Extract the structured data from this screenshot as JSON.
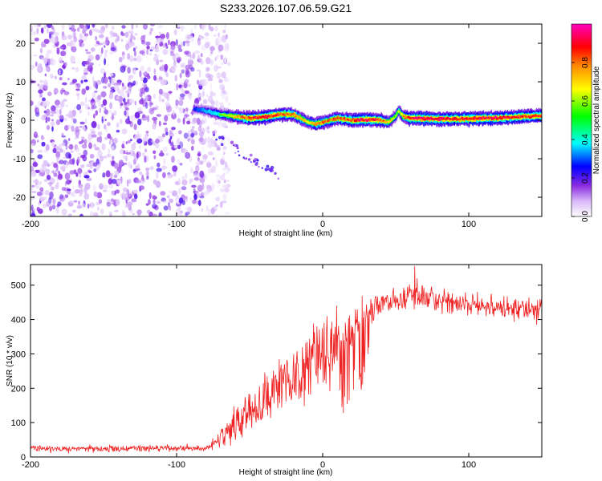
{
  "title": "S233.2026.107.06.59.G21",
  "chart_data": [
    {
      "type": "heatmap",
      "name": "spectrogram",
      "xlabel": "Height of straight line (km)",
      "ylabel": "Frequency (Hz)",
      "xlim": [
        -200,
        150
      ],
      "ylim": [
        -25,
        25
      ],
      "xticks": [
        -200,
        -100,
        0,
        100
      ],
      "xtick_labels": [
        "-200",
        "-100",
        "0",
        "100"
      ],
      "yticks": [
        -20,
        -10,
        0,
        10,
        20
      ],
      "ytick_labels": [
        "-20",
        "-10",
        "0",
        "10",
        "20"
      ],
      "colorbar": {
        "label": "Normalized spectral amplitude",
        "range": [
          0,
          1
        ],
        "ticks": [
          0,
          0.2,
          0.4,
          0.6,
          0.8
        ],
        "tick_labels": [
          "0.0",
          "0.2",
          "0.4",
          "0.6",
          "0.8"
        ],
        "colors": [
          "#ffffff",
          "#d8b8f8",
          "#8a2be2",
          "#0000ff",
          "#00ffff",
          "#00ff00",
          "#ffff00",
          "#ff8c00",
          "#ff0000",
          "#ff00c0"
        ]
      },
      "noise_region": {
        "x_from": -200,
        "x_to": -70,
        "description": "scattered low-amplitude speckle"
      },
      "signal_ridge": {
        "x": [
          -88,
          -80,
          -70,
          -60,
          -50,
          -40,
          -30,
          -20,
          -15,
          -10,
          -5,
          0,
          10,
          20,
          30,
          40,
          45,
          50,
          52,
          55,
          60,
          70,
          80,
          100,
          120,
          150
        ],
        "frequency_hz": [
          3,
          2.5,
          1.5,
          1,
          0.5,
          0.8,
          1.5,
          1.5,
          0.5,
          -0.5,
          -1,
          -0.5,
          0.5,
          0,
          0.2,
          0,
          -0.5,
          1,
          2.5,
          1,
          0.5,
          0.5,
          0.3,
          0.4,
          0.6,
          1.2
        ],
        "amplitude": [
          0.35,
          0.45,
          0.55,
          0.7,
          0.85,
          0.9,
          0.85,
          0.8,
          0.75,
          0.7,
          0.75,
          0.8,
          0.8,
          0.85,
          0.9,
          0.85,
          0.7,
          0.6,
          0.6,
          0.75,
          0.9,
          0.95,
          0.9,
          0.9,
          0.9,
          0.85
        ]
      },
      "secondary_trace": {
        "x": [
          -75,
          -65,
          -55,
          -45,
          -35,
          -28
        ],
        "frequency_hz": [
          -3,
          -6,
          -9,
          -11,
          -13,
          -15
        ],
        "amplitude": 0.2
      }
    },
    {
      "type": "line",
      "name": "snr",
      "xlabel": "Height of straight line (km)",
      "ylabel": "SNR (10 * v/v)",
      "xlim": [
        -200,
        150
      ],
      "ylim": [
        0,
        560
      ],
      "xticks": [
        -200,
        -100,
        0,
        100
      ],
      "xtick_labels": [
        "-200",
        "-100",
        "0",
        "100"
      ],
      "yticks": [
        0,
        100,
        200,
        300,
        400,
        500
      ],
      "ytick_labels": [
        "0",
        "100",
        "200",
        "300",
        "400",
        "500"
      ],
      "color": "#ee2222",
      "envelope": {
        "x": [
          -200,
          -150,
          -100,
          -80,
          -72,
          -65,
          -60,
          -50,
          -40,
          -30,
          -20,
          -10,
          0,
          10,
          15,
          20,
          30,
          35,
          40,
          50,
          60,
          70,
          80,
          100,
          120,
          150
        ],
        "mean": [
          25,
          24,
          25,
          25,
          40,
          80,
          100,
          140,
          170,
          210,
          230,
          260,
          300,
          330,
          360,
          390,
          420,
          440,
          450,
          460,
          470,
          460,
          455,
          445,
          435,
          430
        ],
        "spread": [
          10,
          10,
          10,
          10,
          30,
          50,
          60,
          70,
          80,
          90,
          100,
          120,
          120,
          120,
          160,
          170,
          150,
          40,
          30,
          40,
          45,
          40,
          40,
          35,
          35,
          35
        ]
      },
      "peak": {
        "x": 63,
        "y": 555
      }
    }
  ]
}
